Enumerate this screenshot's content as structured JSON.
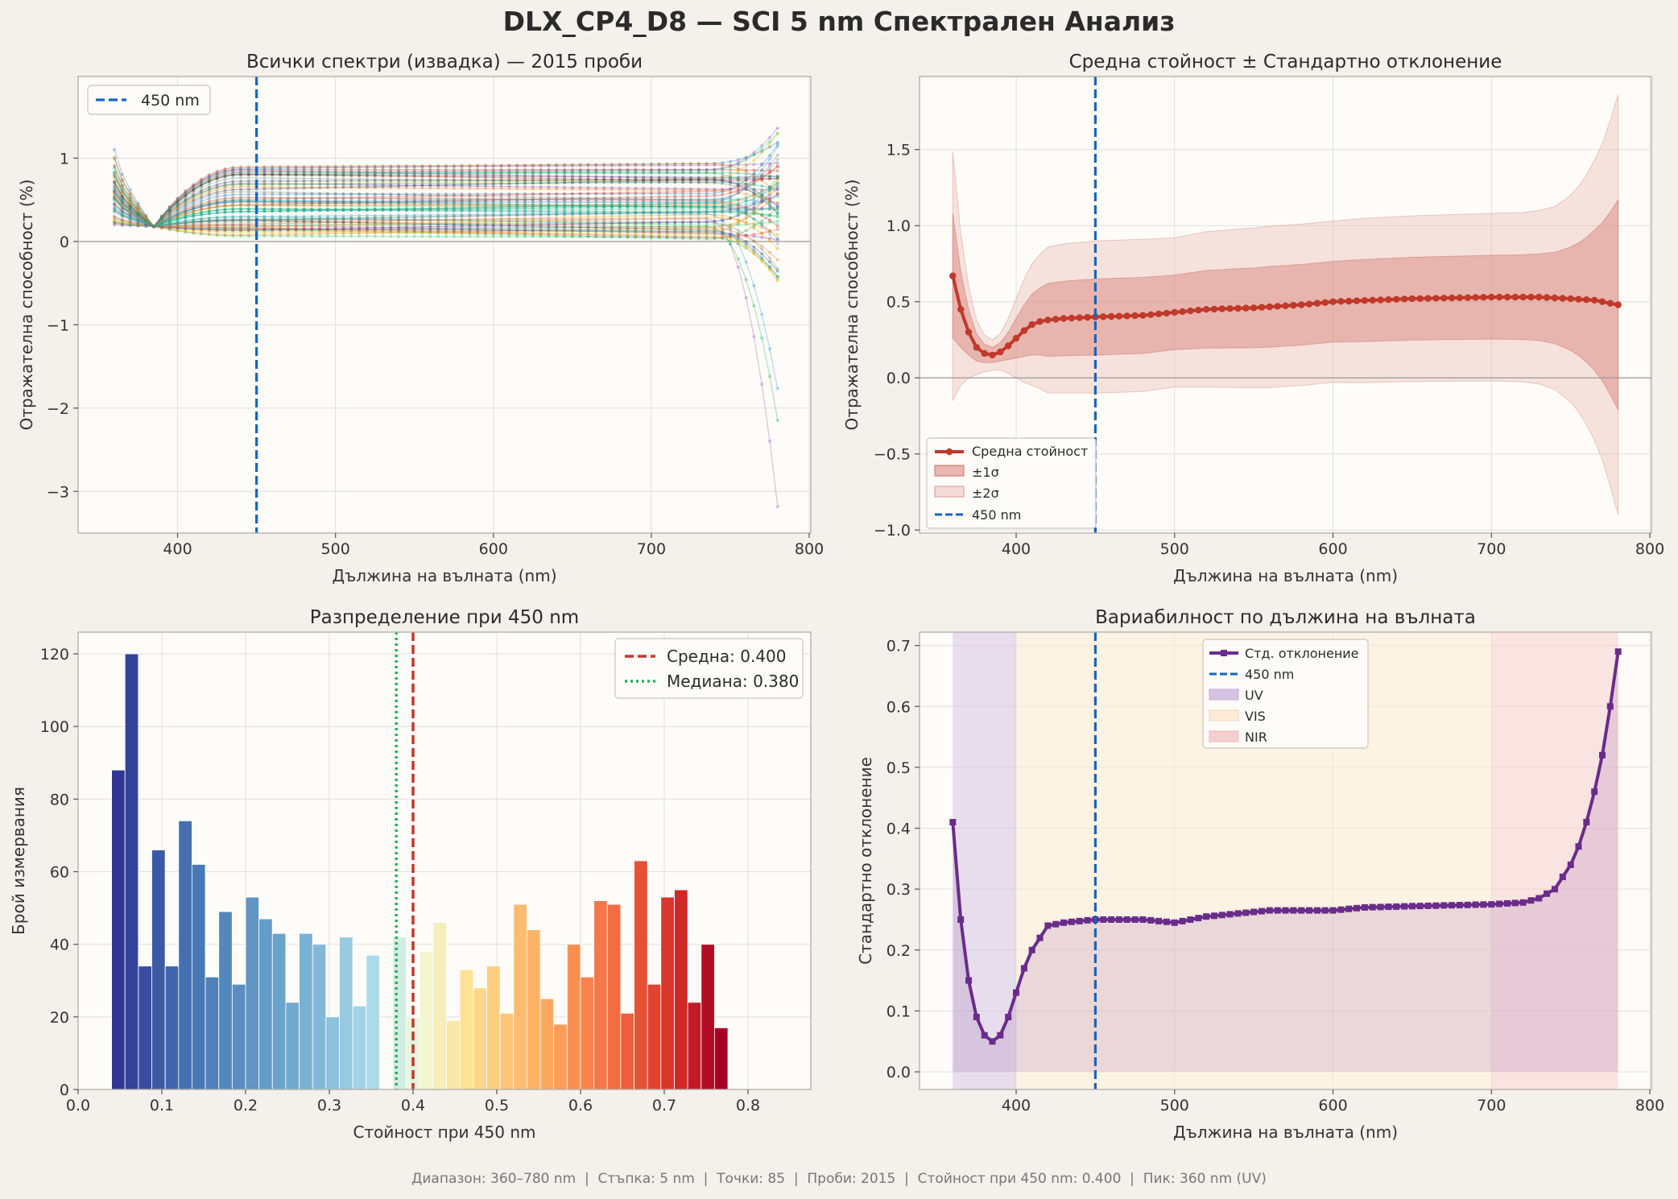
{
  "figure": {
    "title": "DLX_CP4_D8 — SCI 5 nm Спектрален Анализ",
    "footer": "Диапазон: 360–780 nm  |  Стъпка: 5 nm  |  Точки: 85  |  Проби: 2015  |  Стойност при 450 nm: 0.400  |  Пик: 360 nm (UV)"
  },
  "colors": {
    "background": "#f4f0eb",
    "plot_bg": "#fdfcf8",
    "marker_line": "#1565c0",
    "mean": "#c0392b",
    "median": "#27ae60",
    "std": "#6a2c8a",
    "uv": "#d9c8e6",
    "vis": "#fdeedd",
    "nir": "#f4d3d3"
  },
  "chart_data": [
    {
      "type": "line",
      "title": "Всички спектри (извадка) — 2015 проби",
      "xlabel": "Дължина на вълната (nm)",
      "ylabel": "Отражателна способност (%)",
      "xlim": [
        337,
        801
      ],
      "ylim": [
        -3.5,
        1.98
      ],
      "xticks": [
        400,
        500,
        600,
        700,
        800
      ],
      "yticks": [
        -3,
        -2,
        -1,
        0,
        1
      ],
      "grid": true,
      "legend": {
        "placement": "top-left",
        "entries": [
          "450 nm"
        ]
      },
      "marker_x": 450,
      "x_range": [
        360,
        780
      ],
      "step": 5,
      "series_note_count": 60
    },
    {
      "type": "line",
      "title": "Средна стойност ± Стандартно отклонение",
      "xlabel": "Дължина на вълната (nm)",
      "ylabel": "Отражателна способност (%)",
      "xlim": [
        339,
        801
      ],
      "ylim": [
        -1.02,
        1.98
      ],
      "xticks": [
        400,
        500,
        600,
        700,
        800
      ],
      "yticks": [
        -1.0,
        -0.5,
        0.0,
        0.5,
        1.0,
        1.5
      ],
      "ytick_labels": [
        "−1.0",
        "−0.5",
        "0.0",
        "0.5",
        "1.0",
        "1.5"
      ],
      "grid": true,
      "legend": {
        "placement": "bottom-left",
        "entries": [
          "Средна стойност",
          "±1σ",
          "±2σ",
          "450 nm"
        ]
      },
      "marker_x": 450,
      "mean_points": [
        [
          360,
          0.67
        ],
        [
          365,
          0.45
        ],
        [
          370,
          0.3
        ],
        [
          375,
          0.2
        ],
        [
          380,
          0.16
        ],
        [
          385,
          0.15
        ],
        [
          390,
          0.17
        ],
        [
          395,
          0.21
        ],
        [
          400,
          0.26
        ],
        [
          405,
          0.31
        ],
        [
          410,
          0.35
        ],
        [
          415,
          0.37
        ],
        [
          420,
          0.38
        ],
        [
          430,
          0.39
        ],
        [
          450,
          0.4
        ],
        [
          480,
          0.41
        ],
        [
          500,
          0.43
        ],
        [
          520,
          0.45
        ],
        [
          550,
          0.46
        ],
        [
          580,
          0.48
        ],
        [
          600,
          0.5
        ],
        [
          650,
          0.52
        ],
        [
          700,
          0.53
        ],
        [
          730,
          0.53
        ],
        [
          750,
          0.52
        ],
        [
          765,
          0.51
        ],
        [
          780,
          0.48
        ]
      ],
      "std_points": [
        [
          360,
          0.41
        ],
        [
          365,
          0.25
        ],
        [
          370,
          0.15
        ],
        [
          375,
          0.09
        ],
        [
          380,
          0.06
        ],
        [
          385,
          0.05
        ],
        [
          390,
          0.06
        ],
        [
          395,
          0.09
        ],
        [
          400,
          0.13
        ],
        [
          405,
          0.17
        ],
        [
          410,
          0.2
        ],
        [
          415,
          0.22
        ],
        [
          420,
          0.24
        ],
        [
          430,
          0.245
        ],
        [
          450,
          0.25
        ],
        [
          480,
          0.25
        ],
        [
          500,
          0.245
        ],
        [
          510,
          0.25
        ],
        [
          520,
          0.255
        ],
        [
          540,
          0.26
        ],
        [
          560,
          0.265
        ],
        [
          600,
          0.265
        ],
        [
          620,
          0.27
        ],
        [
          650,
          0.272
        ],
        [
          700,
          0.275
        ],
        [
          720,
          0.278
        ],
        [
          730,
          0.285
        ],
        [
          740,
          0.3
        ],
        [
          745,
          0.32
        ],
        [
          750,
          0.34
        ],
        [
          755,
          0.37
        ],
        [
          760,
          0.41
        ],
        [
          765,
          0.46
        ],
        [
          770,
          0.52
        ],
        [
          775,
          0.6
        ],
        [
          780,
          0.69
        ]
      ]
    },
    {
      "type": "bar",
      "title": "Разпределение при 450 nm",
      "xlabel": "Стойност при 450 nm",
      "ylabel": "Брой измервания",
      "xlim": [
        0.0,
        0.875
      ],
      "ylim": [
        0,
        126
      ],
      "xticks": [
        0.0,
        0.1,
        0.2,
        0.3,
        0.4,
        0.5,
        0.6,
        0.7,
        0.8
      ],
      "xtick_labels": [
        "0.0",
        "0.1",
        "0.2",
        "0.3",
        "0.4",
        "0.5",
        "0.6",
        "0.7",
        "0.8"
      ],
      "yticks": [
        0,
        20,
        40,
        60,
        80,
        100,
        120
      ],
      "grid": true,
      "legend": {
        "placement": "top-right",
        "entries": [
          "Средна: 0.400",
          "Медиана: 0.380"
        ]
      },
      "mean": 0.4,
      "median": 0.38,
      "bin_start": 0.04,
      "bin_width": 0.016,
      "counts": [
        88,
        120,
        34,
        66,
        34,
        74,
        62,
        31,
        49,
        29,
        53,
        47,
        43,
        24,
        43,
        40,
        20,
        42,
        23,
        37,
        0,
        42,
        20,
        38,
        46,
        19,
        33,
        28,
        34,
        21,
        51,
        44,
        25,
        18,
        40,
        31,
        52,
        51,
        21,
        63,
        29,
        53,
        55,
        24,
        40,
        17
      ]
    },
    {
      "type": "line",
      "title": "Вариабилност по дължина на вълната",
      "xlabel": "Дължина на вълната (nm)",
      "ylabel": "Стандартно отклонение",
      "xlim": [
        339,
        801
      ],
      "ylim": [
        -0.029,
        0.722
      ],
      "xticks": [
        400,
        500,
        600,
        700,
        800
      ],
      "yticks": [
        0.0,
        0.1,
        0.2,
        0.3,
        0.4,
        0.5,
        0.6,
        0.7
      ],
      "ytick_labels": [
        "0.0",
        "0.1",
        "0.2",
        "0.3",
        "0.4",
        "0.5",
        "0.6",
        "0.7"
      ],
      "grid": true,
      "legend": {
        "placement": "top-center",
        "entries": [
          "Стд. отклонение",
          "450 nm",
          "UV",
          "VIS",
          "NIR"
        ]
      },
      "marker_x": 450,
      "bands": [
        {
          "name": "UV",
          "from": 360,
          "to": 400
        },
        {
          "name": "VIS",
          "from": 400,
          "to": 700
        },
        {
          "name": "NIR",
          "from": 700,
          "to": 780
        }
      ]
    }
  ]
}
